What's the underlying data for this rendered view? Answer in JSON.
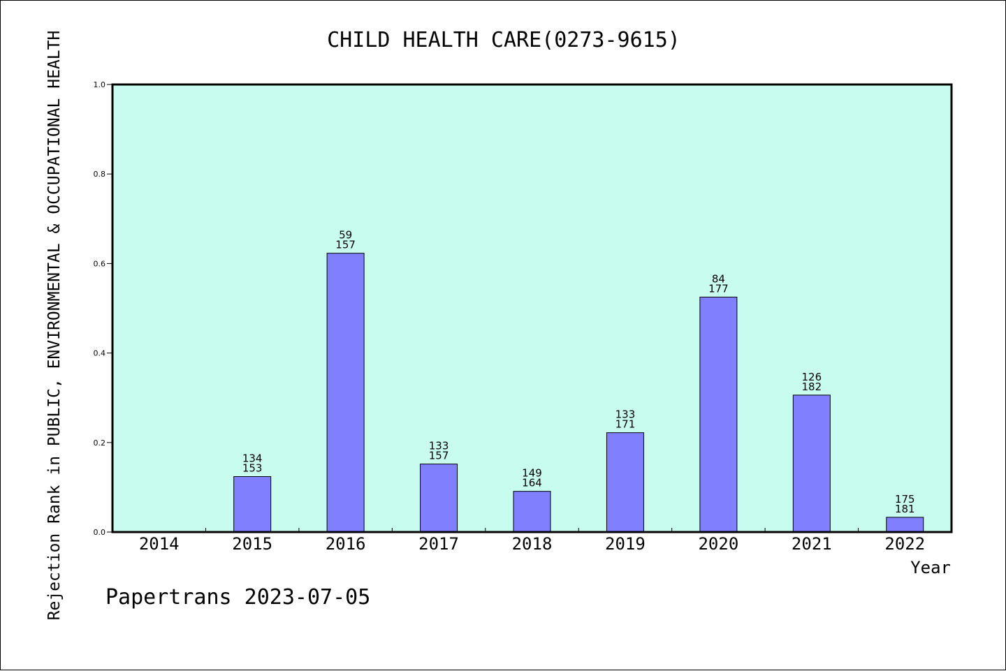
{
  "chart_data": {
    "type": "bar",
    "title": "CHILD HEALTH CARE(0273-9615)",
    "xlabel": "Year",
    "ylabel": "Rejection Rank in PUBLIC, ENVIRONMENTAL & OCCUPATIONAL HEALTH",
    "ylim": [
      0,
      1.0
    ],
    "yticks": [
      "0.0",
      "0.2",
      "0.4",
      "0.6",
      "0.8",
      "1.0"
    ],
    "categories": [
      "2014",
      "2015",
      "2016",
      "2017",
      "2018",
      "2019",
      "2020",
      "2021",
      "2022"
    ],
    "values": [
      null,
      0.124,
      0.623,
      0.152,
      0.091,
      0.222,
      0.525,
      0.306,
      0.033
    ],
    "labels_top": [
      null,
      "134",
      "59",
      "133",
      "149",
      "133",
      "84",
      "126",
      "175"
    ],
    "labels_bottom": [
      null,
      "153",
      "157",
      "157",
      "164",
      "171",
      "177",
      "182",
      "181"
    ],
    "grid": false,
    "colors": {
      "plot_bg": "#c8fcee",
      "bar": "#8080ff",
      "bar_edge": "#000000"
    }
  },
  "footer": "Papertrans 2023-07-05"
}
